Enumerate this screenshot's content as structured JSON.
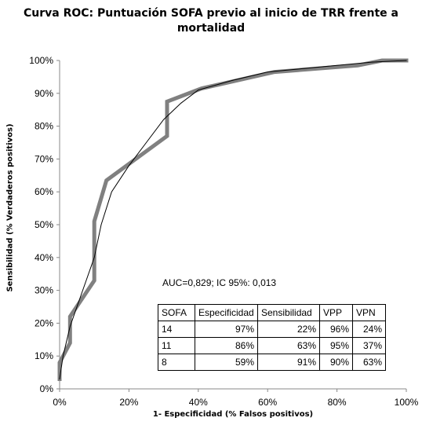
{
  "chart_data": {
    "type": "line",
    "title": "Curva ROC: Puntuación SOFA previo al inicio de TRR frente a mortalidad",
    "xlabel": "1- Especificidad  (% Falsos positivos)",
    "ylabel": "Sensibilidad  (% Verdaderos positivos)",
    "xlim": [
      0,
      100
    ],
    "ylim": [
      0,
      100
    ],
    "x_ticks": [
      "0%",
      "20%",
      "40%",
      "60%",
      "80%",
      "100%"
    ],
    "y_ticks": [
      "0%",
      "10%",
      "20%",
      "30%",
      "40%",
      "50%",
      "60%",
      "70%",
      "80%",
      "90%",
      "100%"
    ],
    "grid": false,
    "series": [
      {
        "style": "thick",
        "color": "#808080",
        "points": [
          [
            0,
            3
          ],
          [
            0,
            8
          ],
          [
            3,
            14
          ],
          [
            3,
            22
          ],
          [
            10,
            33
          ],
          [
            10,
            51
          ],
          [
            13.5,
            63.5
          ],
          [
            31,
            77
          ],
          [
            31,
            87.5
          ],
          [
            41,
            91.5
          ],
          [
            62,
            96.5
          ],
          [
            86,
            98.5
          ],
          [
            93,
            100
          ],
          [
            100,
            100
          ]
        ]
      },
      {
        "style": "thin",
        "color": "#000000",
        "points": [
          [
            0,
            3
          ],
          [
            1,
            10
          ],
          [
            3,
            19
          ],
          [
            6,
            28
          ],
          [
            10,
            40
          ],
          [
            12,
            50
          ],
          [
            15,
            60
          ],
          [
            20,
            68
          ],
          [
            25,
            75
          ],
          [
            30,
            82
          ],
          [
            35,
            87
          ],
          [
            40,
            91
          ],
          [
            50,
            94
          ],
          [
            60,
            96.5
          ],
          [
            70,
            97.5
          ],
          [
            80,
            98.5
          ],
          [
            90,
            99.5
          ],
          [
            100,
            100
          ]
        ]
      }
    ],
    "annotation": "AUC=0,829; IC 95%: 0,013",
    "table": {
      "headers": [
        "SOFA",
        "Especificidad",
        "Sensibilidad",
        "VPP",
        "VPN"
      ],
      "rows": [
        [
          "14",
          "97%",
          "22%",
          "96%",
          "24%"
        ],
        [
          "11",
          "86%",
          "63%",
          "95%",
          "37%"
        ],
        [
          "8",
          "59%",
          "91%",
          "90%",
          "63%"
        ]
      ]
    }
  }
}
